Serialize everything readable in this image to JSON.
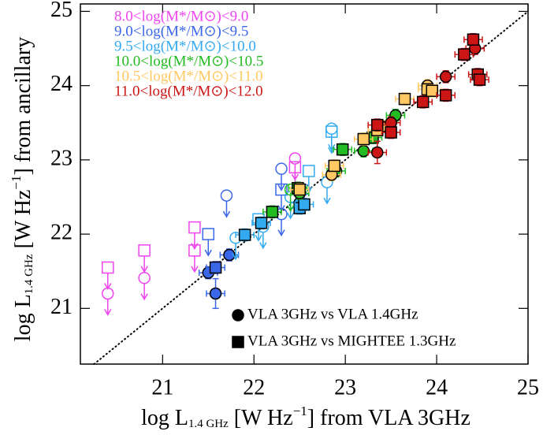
{
  "chart_data": {
    "type": "scatter",
    "xlabel": {
      "main": "log L",
      "sub": "1.4 GHz",
      "mid": " [W Hz",
      "sup": "−1",
      "end": "] from VLA 3GHz"
    },
    "ylabel": {
      "main": "log L",
      "sub": "1.4 GHz",
      "mid": " [W Hz",
      "sup": "−1",
      "end": "] from ancillary"
    },
    "xlim": [
      20.1,
      25.0
    ],
    "ylim": [
      20.25,
      25.1
    ],
    "xticks": [
      21,
      22,
      23,
      24,
      25
    ],
    "yticks": [
      21,
      22,
      23,
      24,
      25
    ],
    "one_to_one_line": true,
    "marker_legend": [
      {
        "label": "VLA 3GHz vs VLA 1.4GHz",
        "marker": "circle"
      },
      {
        "label": "VLA 3GHz vs MIGHTEE 1.3GHz",
        "marker": "square"
      }
    ],
    "series": [
      {
        "name": "8.0<log(M*/M⊙)<9.0",
        "color": "#ee44ee",
        "circle_limits": {
          "x": [
            20.4,
            20.8,
            22.45
          ],
          "values": [
            21.2,
            21.41,
            23.02
          ]
        },
        "square_limits": {
          "x": [
            20.4,
            20.8,
            21.35,
            21.35,
            22.45
          ],
          "values": [
            21.55,
            21.78,
            22.09,
            21.78,
            22.9
          ]
        }
      },
      {
        "name": "9.0<log(M*/M⊙)<9.5",
        "color": "#3a66e8",
        "circles": {
          "x": [
            21.5,
            21.58,
            21.73
          ],
          "values": [
            21.48,
            21.2,
            21.72
          ],
          "xerr": [
            0.1,
            0.1,
            0.1
          ],
          "yerr": [
            0.08,
            0.2,
            0.08
          ]
        },
        "squares": {
          "x": [
            21.58
          ],
          "values": [
            21.55
          ],
          "xerr": [
            0.1
          ],
          "yerr": [
            0.08
          ]
        },
        "circle_limits": {
          "x": [
            21.7,
            22.3,
            22.3,
            22.55
          ],
          "values": [
            22.52,
            22.88,
            22.27,
            22.6
          ]
        },
        "square_limits": {
          "x": [
            21.5,
            22.3
          ],
          "values": [
            22.0,
            22.6
          ]
        }
      },
      {
        "name": "9.5<log(M*/M⊙)<10.0",
        "color": "#33aaf0",
        "circles": {
          "x": [
            22.5
          ],
          "values": [
            22.42
          ],
          "xerr": [
            0.1
          ],
          "yerr": [
            0.08
          ]
        },
        "squares": {
          "x": [
            21.9,
            22.08,
            22.5,
            22.55
          ],
          "values": [
            21.99,
            22.15,
            22.35,
            22.4
          ],
          "xerr": [
            0.1,
            0.1,
            0.1,
            0.1
          ],
          "yerr": [
            0.08,
            0.08,
            0.08,
            0.08
          ]
        },
        "circle_limits": {
          "x": [
            21.8,
            22.1,
            22.4,
            22.85,
            22.8
          ],
          "values": [
            21.95,
            22.1,
            22.5,
            23.42,
            22.7
          ]
        },
        "square_limits": {
          "x": [
            22.05,
            22.6,
            22.85
          ],
          "values": [
            22.2,
            22.85,
            23.38
          ]
        }
      },
      {
        "name": "10.0<log(M*/M⊙)<10.5",
        "color": "#22bb22",
        "circles": {
          "x": [
            22.5,
            22.9,
            23.2,
            23.55
          ],
          "values": [
            22.55,
            22.85,
            23.12,
            23.6
          ],
          "xerr": [
            0.1,
            0.1,
            0.1,
            0.1
          ],
          "yerr": [
            0.08,
            0.08,
            0.08,
            0.08
          ]
        },
        "squares": {
          "x": [
            22.2,
            22.48,
            22.97,
            23.3
          ],
          "values": [
            22.3,
            22.62,
            23.14,
            23.3
          ],
          "xerr": [
            0.1,
            0.1,
            0.1,
            0.1
          ],
          "yerr": [
            0.08,
            0.08,
            0.08,
            0.08
          ]
        },
        "circle_limits": {
          "x": [
            22.4
          ],
          "values": [
            22.6
          ]
        }
      },
      {
        "name": "10.5<log(M*/M⊙)<11.0",
        "color": "#ffc862",
        "circles": {
          "x": [
            22.85,
            23.4,
            23.9
          ],
          "values": [
            22.8,
            23.45,
            24.0
          ],
          "xerr": [
            0.1,
            0.1,
            0.1
          ],
          "yerr": [
            0.08,
            0.08,
            0.08
          ]
        },
        "squares": {
          "x": [
            22.5,
            22.88,
            23.2,
            23.35,
            23.65,
            23.9,
            23.95
          ],
          "values": [
            22.6,
            22.92,
            23.28,
            23.4,
            23.82,
            23.95,
            23.93
          ],
          "xerr": [
            0.1,
            0.1,
            0.1,
            0.1,
            0.1,
            0.1,
            0.1
          ],
          "yerr": [
            0.08,
            0.08,
            0.08,
            0.08,
            0.08,
            0.08,
            0.08
          ]
        }
      },
      {
        "name": "11.0<log(M*/M⊙)<12.0",
        "color": "#cc1515",
        "circles": {
          "x": [
            23.35,
            23.5,
            24.1,
            24.42
          ],
          "values": [
            23.1,
            23.5,
            24.12,
            24.5
          ],
          "xerr": [
            0.1,
            0.1,
            0.1,
            0.1
          ],
          "yerr": [
            0.15,
            0.08,
            0.08,
            0.08
          ]
        },
        "squares": {
          "x": [
            23.35,
            23.5,
            23.85,
            24.1,
            24.3,
            24.4,
            24.45,
            24.47
          ],
          "values": [
            23.47,
            23.37,
            23.78,
            23.87,
            24.42,
            24.62,
            24.15,
            24.08
          ],
          "xerr": [
            0.1,
            0.1,
            0.1,
            0.1,
            0.1,
            0.1,
            0.1,
            0.1
          ],
          "yerr": [
            0.08,
            0.08,
            0.08,
            0.08,
            0.08,
            0.08,
            0.08,
            0.08
          ]
        }
      }
    ]
  }
}
